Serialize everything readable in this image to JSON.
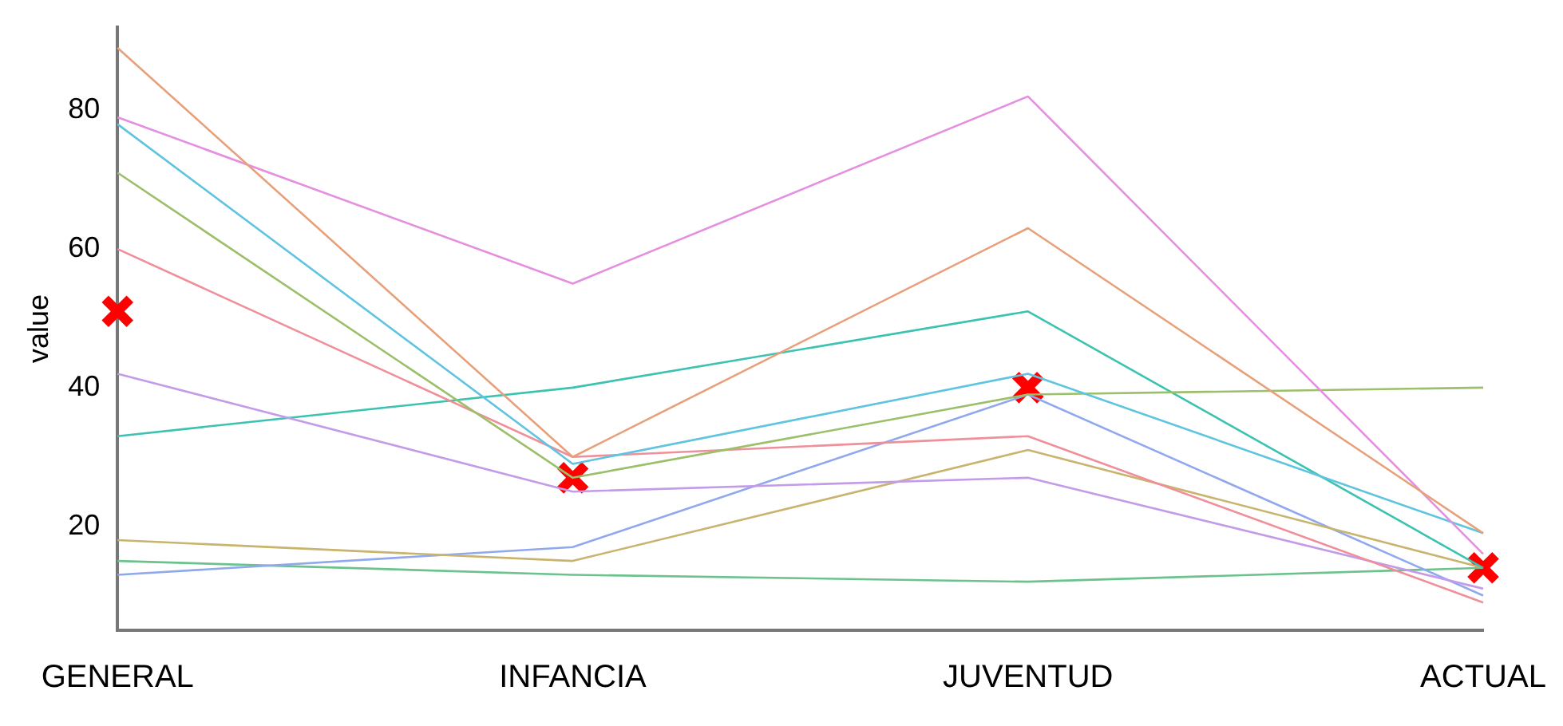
{
  "chart_data": {
    "type": "line",
    "ylabel": "value",
    "categories": [
      "GENERAL",
      "INFANCIA",
      "JUVENTUD",
      "ACTUAL"
    ],
    "ylim": [
      5,
      92
    ],
    "yticks": [
      20,
      40,
      60,
      80
    ],
    "grid": false,
    "legend": false,
    "marker": "none",
    "line_style": "solid",
    "series": [
      {
        "color": "#e8a07a",
        "values": [
          89,
          30,
          63,
          19
        ]
      },
      {
        "color": "#e58fe0",
        "values": [
          79,
          55,
          82,
          16
        ]
      },
      {
        "color": "#5ec4e0",
        "values": [
          78,
          29,
          42,
          19
        ]
      },
      {
        "color": "#9bbf6a",
        "values": [
          71,
          27,
          39,
          40
        ]
      },
      {
        "color": "#ee8f9a",
        "values": [
          60,
          30,
          33,
          9
        ]
      },
      {
        "color": "#c39be8",
        "values": [
          42,
          25,
          27,
          11
        ]
      },
      {
        "color": "#3cc2b0",
        "values": [
          33,
          40,
          51,
          14
        ]
      },
      {
        "color": "#c8b46e",
        "values": [
          18,
          15,
          31,
          14
        ]
      },
      {
        "color": "#8fa8ee",
        "values": [
          13,
          17,
          39,
          10
        ]
      },
      {
        "color": "#6cc28c",
        "values": [
          15,
          13,
          12,
          14
        ]
      },
      {
        "type": "scatter",
        "marker": "cross",
        "color": "#ff0000",
        "x": [
          "GENERAL",
          "INFANCIA",
          "JUVENTUD",
          "ACTUAL"
        ],
        "values": [
          51,
          27,
          40,
          14
        ]
      }
    ]
  }
}
